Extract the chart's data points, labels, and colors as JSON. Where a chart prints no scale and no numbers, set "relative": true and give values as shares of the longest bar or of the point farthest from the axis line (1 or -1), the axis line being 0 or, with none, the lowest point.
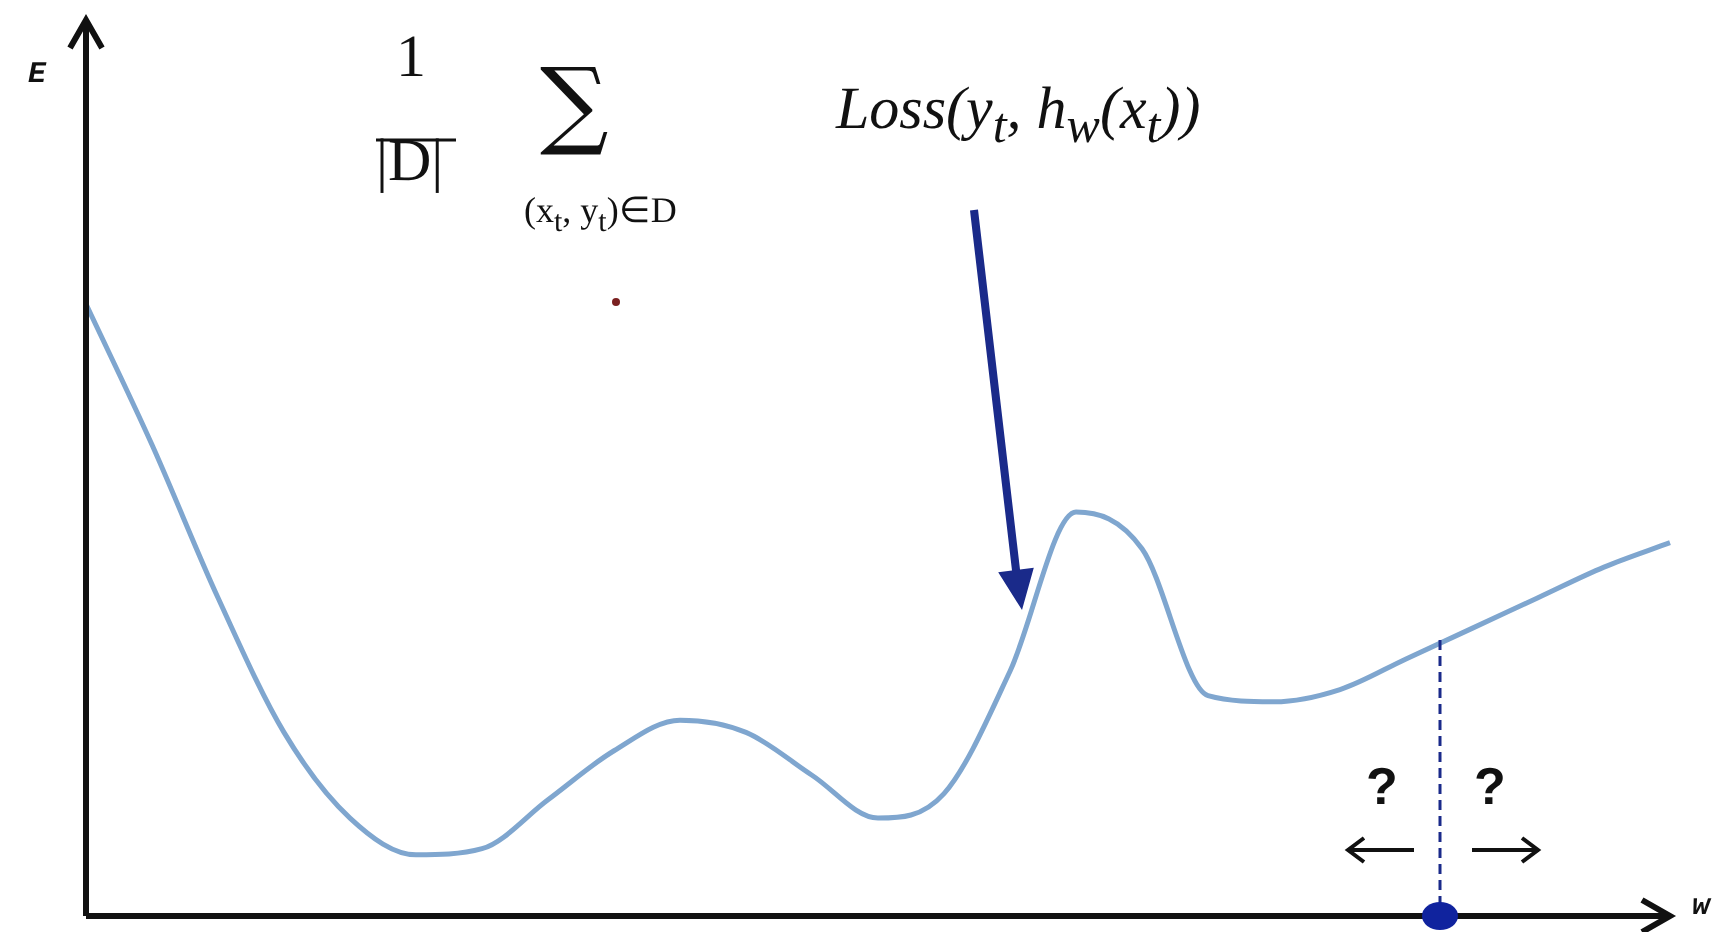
{
  "chart_data": {
    "type": "line",
    "relative": true,
    "xlabel": "w",
    "color": "#7fa6cf",
    "marker": "none",
    "categories": [
      null,
      null,
      null,
      null,
      null,
      null,
      null,
      null,
      null,
      null,
      null,
      null,
      null,
      null,
      null,
      null,
      null,
      null,
      null,
      null,
      null,
      null,
      null,
      null,
      null
    ],
    "values": [
      1.0,
      0.77,
      0.52,
      0.3,
      0.16,
      0.1,
      0.11,
      0.19,
      0.27,
      0.32,
      0.3,
      0.23,
      0.16,
      0.2,
      0.4,
      0.66,
      0.6,
      0.36,
      0.35,
      0.37,
      0.42,
      0.47,
      0.52,
      0.57,
      0.61
    ],
    "annotations": [
      "1",
      "|D|",
      "∑",
      "(x$_{t}$, y$_{t}$)∈D",
      "Loss(y$_{t}$, h$_{w}$(x$_{t}$))",
      "?",
      "?",
      "E"
    ]
  }
}
